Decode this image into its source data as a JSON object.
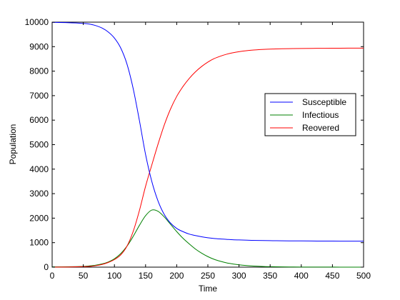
{
  "chart_data": {
    "type": "line",
    "xlabel": "Time",
    "ylabel": "Population",
    "xlim": [
      0,
      500
    ],
    "ylim": [
      0,
      10000
    ],
    "xticks": [
      0,
      50,
      100,
      150,
      200,
      250,
      300,
      350,
      400,
      450,
      500
    ],
    "yticks": [
      0,
      1000,
      2000,
      3000,
      4000,
      5000,
      6000,
      7000,
      8000,
      9000,
      10000
    ],
    "grid": false,
    "legend_position": "right",
    "x": [
      0,
      25,
      50,
      60,
      70,
      80,
      90,
      100,
      110,
      120,
      130,
      140,
      150,
      160,
      170,
      180,
      190,
      200,
      210,
      220,
      230,
      240,
      250,
      260,
      270,
      280,
      290,
      300,
      320,
      340,
      360,
      380,
      400,
      425,
      450,
      475,
      500
    ],
    "series": [
      {
        "name": "Susceptible",
        "color": "#0000ff",
        "values": [
          9990,
          9980,
          9950,
          9920,
          9860,
          9760,
          9600,
          9350,
          8950,
          8300,
          7300,
          6000,
          4600,
          3500,
          2700,
          2150,
          1800,
          1580,
          1450,
          1350,
          1290,
          1240,
          1200,
          1170,
          1150,
          1135,
          1120,
          1110,
          1095,
          1085,
          1078,
          1073,
          1070,
          1066,
          1063,
          1061,
          1060
        ]
      },
      {
        "name": "Infectious",
        "color": "#008000",
        "values": [
          10,
          15,
          30,
          50,
          80,
          130,
          210,
          340,
          550,
          850,
          1250,
          1700,
          2100,
          2330,
          2280,
          2050,
          1750,
          1450,
          1180,
          950,
          740,
          570,
          430,
          320,
          240,
          175,
          130,
          95,
          50,
          27,
          15,
          8,
          5,
          3,
          2,
          1,
          0
        ]
      },
      {
        "name": "Reovered",
        "color": "#ff0000",
        "values": [
          0,
          5,
          20,
          30,
          60,
          110,
          190,
          310,
          500,
          850,
          1450,
          2300,
          3300,
          4170,
          5020,
          5800,
          6450,
          6970,
          7370,
          7700,
          7970,
          8190,
          8370,
          8510,
          8610,
          8690,
          8750,
          8795,
          8855,
          8888,
          8907,
          8919,
          8925,
          8931,
          8935,
          8938,
          8940
        ]
      }
    ]
  }
}
